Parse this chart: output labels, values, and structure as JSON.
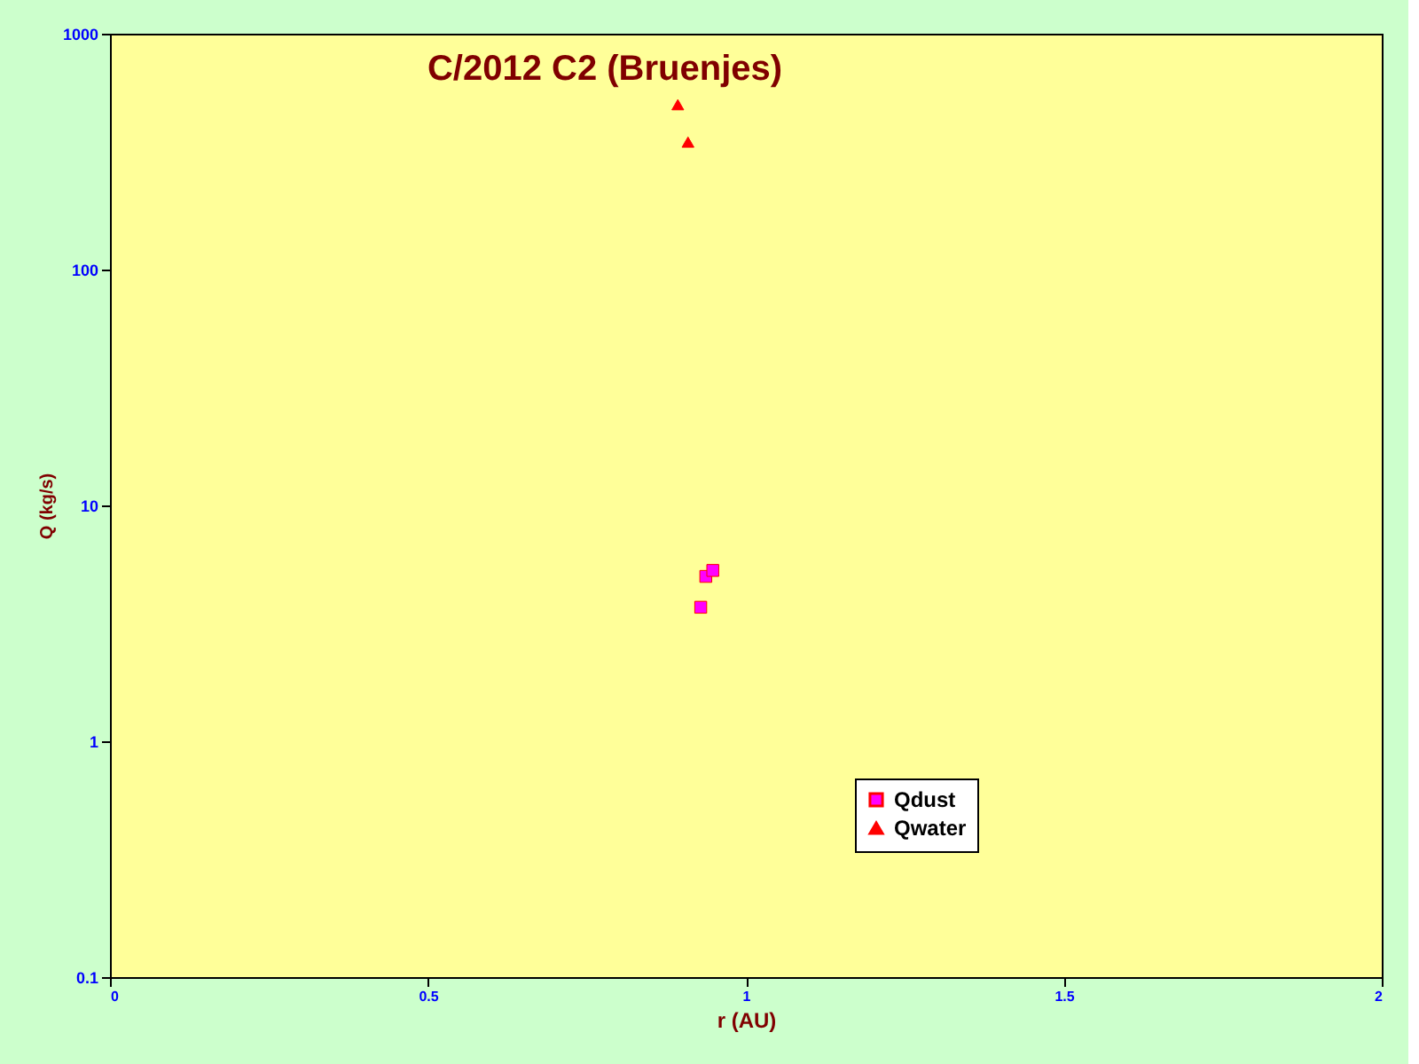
{
  "chart_data": {
    "type": "scatter",
    "title": "C/2012 C2 (Bruenjes)",
    "xlabel": "r (AU)",
    "ylabel": "Q (kg/s)",
    "xlim": [
      0,
      2
    ],
    "xticks": [
      0,
      0.5,
      1,
      1.5,
      2
    ],
    "ylim": [
      0.1,
      1000
    ],
    "yticks": [
      0.1,
      1,
      10,
      100,
      1000
    ],
    "log": "y",
    "grid": false,
    "legend": "bottom right",
    "series": [
      {
        "name": "Qdust",
        "color": "#ff00ff",
        "marker": "square",
        "x": [
          0.929,
          0.937,
          0.948
        ],
        "values": [
          3.7,
          5.0,
          5.3
        ]
      },
      {
        "name": "Qwater",
        "color": "#ff0000",
        "marker": "triangle",
        "x": [
          0.893,
          0.909
        ],
        "values": [
          500,
          347
        ]
      }
    ]
  }
}
